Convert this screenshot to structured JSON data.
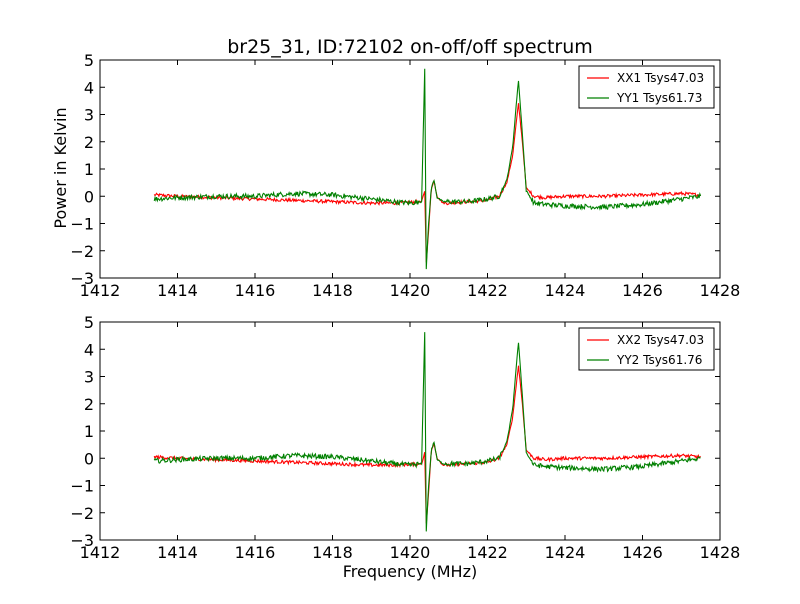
{
  "title": "br25_31, ID:72102 on-off/off spectrum",
  "xlabel": "Frequency (MHz)",
  "ylabel": "Power in Kelvin",
  "colors": {
    "xx": "#ff0000",
    "yy": "#008000"
  },
  "chart_data": [
    {
      "type": "line",
      "title": "br25_31, ID:72102 on-off/off spectrum",
      "xlabel": "",
      "ylabel": "Power in Kelvin",
      "xlim": [
        1412,
        1428
      ],
      "ylim": [
        -3,
        5
      ],
      "xticks": [
        1412,
        1414,
        1416,
        1418,
        1420,
        1422,
        1424,
        1426,
        1428
      ],
      "yticks": [
        -3,
        -2,
        -1,
        0,
        1,
        2,
        3,
        4,
        5
      ],
      "grid": false,
      "legend_position": "top-right",
      "series": [
        {
          "name": "XX1 Tsys47.03",
          "color": "#ff0000",
          "x": [
            1413.4,
            1414,
            1415,
            1416,
            1417,
            1418,
            1419,
            1419.6,
            1420.0,
            1420.3,
            1420.38,
            1420.42,
            1420.47,
            1420.55,
            1420.62,
            1420.7,
            1420.85,
            1421.0,
            1421.5,
            1422.0,
            1422.3,
            1422.5,
            1422.65,
            1422.75,
            1422.8,
            1422.9,
            1423.0,
            1423.2,
            1423.5,
            1424,
            1425,
            1426,
            1427,
            1427.5
          ],
          "y": [
            0.05,
            0.0,
            -0.05,
            -0.1,
            -0.15,
            -0.2,
            -0.25,
            -0.25,
            -0.22,
            -0.2,
            0.2,
            -2.4,
            -1.5,
            0.3,
            0.55,
            0.0,
            -0.25,
            -0.25,
            -0.2,
            -0.15,
            0.0,
            0.5,
            1.5,
            2.8,
            3.4,
            2.0,
            0.3,
            0.0,
            -0.05,
            0.0,
            0.0,
            0.05,
            0.1,
            0.05
          ]
        },
        {
          "name": "YY1 Tsys61.73",
          "color": "#008000",
          "x": [
            1413.4,
            1414,
            1415,
            1416,
            1417,
            1418,
            1419,
            1419.6,
            1420.0,
            1420.3,
            1420.38,
            1420.42,
            1420.47,
            1420.55,
            1420.62,
            1420.7,
            1420.85,
            1421.0,
            1421.5,
            1422.0,
            1422.3,
            1422.5,
            1422.65,
            1422.75,
            1422.8,
            1422.9,
            1423.0,
            1423.2,
            1423.5,
            1424,
            1425,
            1426,
            1427,
            1427.5
          ],
          "y": [
            -0.1,
            -0.05,
            0.0,
            0.0,
            0.1,
            0.05,
            -0.1,
            -0.2,
            -0.25,
            -0.2,
            4.7,
            -2.7,
            -1.2,
            0.3,
            0.6,
            -0.05,
            -0.2,
            -0.2,
            -0.2,
            -0.1,
            0.0,
            0.6,
            1.8,
            3.5,
            4.25,
            2.3,
            0.2,
            -0.25,
            -0.3,
            -0.35,
            -0.4,
            -0.3,
            -0.1,
            0.0
          ]
        }
      ]
    },
    {
      "type": "line",
      "title": "",
      "xlabel": "Frequency (MHz)",
      "ylabel": "",
      "xlim": [
        1412,
        1428
      ],
      "ylim": [
        -3,
        5
      ],
      "xticks": [
        1412,
        1414,
        1416,
        1418,
        1420,
        1422,
        1424,
        1426,
        1428
      ],
      "yticks": [
        -3,
        -2,
        -1,
        0,
        1,
        2,
        3,
        4,
        5
      ],
      "grid": false,
      "legend_position": "top-right",
      "series": [
        {
          "name": "XX2 Tsys47.03",
          "color": "#ff0000",
          "x": [
            1413.4,
            1414,
            1415,
            1416,
            1417,
            1418,
            1419,
            1419.6,
            1420.0,
            1420.3,
            1420.38,
            1420.42,
            1420.47,
            1420.55,
            1420.62,
            1420.7,
            1420.85,
            1421.0,
            1421.5,
            1422.0,
            1422.3,
            1422.5,
            1422.65,
            1422.75,
            1422.8,
            1422.9,
            1423.0,
            1423.2,
            1423.5,
            1424,
            1425,
            1426,
            1427,
            1427.5
          ],
          "y": [
            0.05,
            0.0,
            -0.05,
            -0.1,
            -0.15,
            -0.2,
            -0.25,
            -0.25,
            -0.22,
            -0.2,
            0.2,
            -2.4,
            -1.5,
            0.3,
            0.55,
            0.0,
            -0.25,
            -0.25,
            -0.2,
            -0.15,
            0.0,
            0.5,
            1.5,
            2.8,
            3.4,
            2.0,
            0.3,
            0.0,
            -0.05,
            0.0,
            0.0,
            0.05,
            0.1,
            0.05
          ]
        },
        {
          "name": "YY2 Tsys61.76",
          "color": "#008000",
          "x": [
            1413.4,
            1414,
            1415,
            1416,
            1417,
            1418,
            1419,
            1419.6,
            1420.0,
            1420.3,
            1420.38,
            1420.42,
            1420.47,
            1420.55,
            1420.62,
            1420.7,
            1420.85,
            1421.0,
            1421.5,
            1422.0,
            1422.3,
            1422.5,
            1422.65,
            1422.75,
            1422.8,
            1422.9,
            1423.0,
            1423.2,
            1423.5,
            1424,
            1425,
            1426,
            1427,
            1427.5
          ],
          "y": [
            -0.1,
            -0.05,
            0.0,
            0.0,
            0.1,
            0.05,
            -0.1,
            -0.2,
            -0.25,
            -0.2,
            4.65,
            -2.7,
            -1.2,
            0.3,
            0.6,
            -0.05,
            -0.2,
            -0.2,
            -0.2,
            -0.1,
            0.0,
            0.6,
            1.8,
            3.5,
            4.25,
            2.3,
            0.2,
            -0.25,
            -0.3,
            -0.35,
            -0.4,
            -0.3,
            -0.1,
            0.0
          ]
        }
      ]
    }
  ]
}
